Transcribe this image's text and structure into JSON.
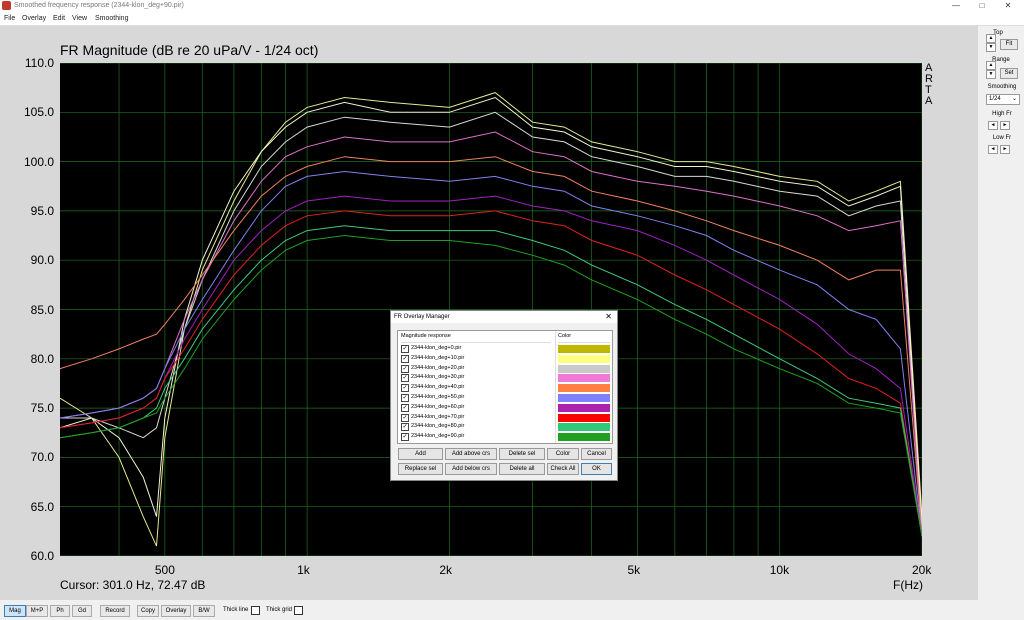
{
  "window": {
    "title": "Smoothed frequency response (2344-klon_deg+90.pir)",
    "minimize": "—",
    "maximize": "□",
    "close": "✕"
  },
  "menu": [
    "File",
    "Overlay",
    "Edit",
    "View",
    "Smoothing"
  ],
  "plot": {
    "title": "FR Magnitude (dB re 20 uPa/V - 1/24 oct)",
    "cursor_readout": "Cursor: 301.0 Hz, 72.47 dB",
    "x_unit_label": "F(Hz)",
    "brand": [
      "A",
      "R",
      "T",
      "A"
    ]
  },
  "chart_data": {
    "type": "line",
    "x_scale": "log",
    "xlim": [
      300,
      20000
    ],
    "ylim": [
      60,
      110
    ],
    "yticks": [
      "110.0",
      "105.0",
      "100.0",
      "95.0",
      "90.0",
      "85.0",
      "80.0",
      "75.0",
      "70.0",
      "65.0",
      "60.0"
    ],
    "xticks": [
      {
        "value": 500,
        "label": "500"
      },
      {
        "value": 1000,
        "label": "1k"
      },
      {
        "value": 2000,
        "label": "2k"
      },
      {
        "value": 5000,
        "label": "5k"
      },
      {
        "value": 10000,
        "label": "10k"
      },
      {
        "value": 20000,
        "label": "20k"
      }
    ],
    "grid": true,
    "x": [
      300,
      350,
      400,
      450,
      480,
      500,
      550,
      600,
      700,
      800,
      900,
      1000,
      1200,
      1500,
      2000,
      2500,
      3000,
      3500,
      4000,
      5000,
      6000,
      7000,
      8000,
      10000,
      12000,
      14000,
      16000,
      18000,
      20000
    ],
    "series": [
      {
        "name": "2344-klon_deg+0.pir",
        "color": "#e8e890",
        "values": [
          76,
          74,
          70,
          64,
          61,
          72,
          83,
          89,
          96,
          101,
          104,
          105.5,
          106.5,
          106,
          105.5,
          107,
          104,
          103.5,
          102,
          101,
          100,
          100,
          99.5,
          98.5,
          98,
          96,
          97,
          98,
          64
        ]
      },
      {
        "name": "2344-klon_deg+10.pir",
        "color": "#f4f4d0",
        "values": [
          73,
          74,
          72,
          68,
          64,
          74,
          84,
          90,
          97,
          101,
          103.5,
          105,
          106,
          105,
          105,
          106.5,
          103.5,
          103,
          101.5,
          100.5,
          99.5,
          99.5,
          99,
          98,
          97.5,
          95.5,
          96.5,
          97.5,
          63
        ]
      },
      {
        "name": "2344-klon_deg+20.pir",
        "color": "#d8d8d8",
        "values": [
          74,
          74,
          73,
          72,
          73,
          76,
          83,
          88,
          95,
          99.5,
          102,
          103.5,
          104.5,
          104,
          103.5,
          105,
          102.5,
          102,
          100.5,
          99.5,
          98.5,
          98.5,
          98,
          97,
          96.5,
          94.5,
          95.5,
          96,
          62
        ]
      },
      {
        "name": "2344-klon_deg+30.pir",
        "color": "#e070c8",
        "values": [
          74,
          74.5,
          75,
          76,
          77,
          79,
          84,
          88,
          94,
          98,
          100.5,
          101.5,
          102.5,
          102,
          102,
          103,
          101,
          100.5,
          99,
          98,
          97.5,
          97,
          96.5,
          95.5,
          94.5,
          93,
          93.5,
          94,
          62
        ]
      },
      {
        "name": "2344-klon_deg+40.pir",
        "color": "#f08060",
        "values": [
          79,
          80,
          81,
          82,
          82.5,
          83.5,
          86,
          88.5,
          93,
          96.5,
          98.5,
          99.5,
          100.5,
          100,
          100,
          100.5,
          99,
          98.5,
          97,
          96,
          95,
          94,
          93,
          91.5,
          90,
          88,
          89,
          89,
          62
        ]
      },
      {
        "name": "2344-klon_deg+50.pir",
        "color": "#8080f0",
        "values": [
          74,
          74.5,
          75,
          76,
          77,
          79,
          83,
          86,
          91,
          95,
          97.5,
          98.5,
          99,
          98.5,
          98,
          98.5,
          97.5,
          97,
          95.5,
          94.5,
          93.5,
          92.5,
          91,
          89,
          87.5,
          85,
          84,
          81,
          62
        ]
      },
      {
        "name": "2344-klon_deg+60.pir",
        "color": "#a020c0",
        "values": [
          73,
          73.5,
          74,
          75,
          76,
          78,
          82,
          85,
          90,
          93,
          95,
          96,
          96.5,
          96,
          96,
          96.5,
          95.5,
          95,
          94,
          93,
          91.5,
          90,
          88.5,
          86,
          83.5,
          80.5,
          79,
          77,
          62
        ]
      },
      {
        "name": "2344-klon_deg+70.pir",
        "color": "#e02020",
        "values": [
          73,
          73.5,
          74,
          75,
          76,
          78,
          81,
          84,
          88.5,
          91.5,
          93.5,
          94.5,
          95,
          94.5,
          94.5,
          95,
          94,
          93.5,
          92,
          90.5,
          88.5,
          87,
          85.5,
          83,
          80.5,
          78,
          77,
          75.5,
          62
        ]
      },
      {
        "name": "2344-klon_deg+80.pir",
        "color": "#40c880",
        "values": [
          72,
          72.5,
          73,
          74,
          75,
          77,
          80,
          83,
          87,
          90,
          92,
          93,
          93.5,
          93,
          93,
          93,
          92,
          91,
          89.5,
          87.5,
          85.5,
          84,
          82.5,
          80,
          78,
          76,
          75.5,
          75,
          62
        ]
      },
      {
        "name": "2344-klon_deg+90.pir",
        "color": "#20a020",
        "values": [
          72,
          72.5,
          73,
          74,
          74.5,
          76,
          79,
          82,
          86,
          89,
          91,
          92,
          92.5,
          92,
          92,
          91.5,
          90.5,
          89.5,
          88,
          86,
          84,
          82.5,
          81,
          79,
          77.5,
          75.5,
          75,
          74.5,
          62
        ]
      }
    ]
  },
  "right_panel": {
    "top_label": "Top",
    "fit_label": "Fit",
    "range_label": "Range",
    "set_label": "Set",
    "smoothing_label": "Smoothing",
    "smoothing_value": "1/24",
    "high_fr_label": "High Fr",
    "low_fr_label": "Low Fr",
    "up": "▲",
    "down": "▼",
    "left": "◄",
    "right": "►"
  },
  "bottom_bar": {
    "buttons": [
      "Mag",
      "M+P",
      "Ph",
      "Gd",
      "Record",
      "Copy",
      "Overlay",
      "B/W"
    ],
    "thick_line": "Thick line",
    "thick_grid": "Thick grid"
  },
  "dialog": {
    "title": "FR Overlay Manager",
    "close": "✕",
    "col_name": "Magnitude response",
    "col_color": "Color",
    "check": "✓",
    "rows": [
      {
        "name": "2344-klon_deg+0.pir",
        "color": "#c0b800"
      },
      {
        "name": "2344-klon_deg+10.pir",
        "color": "#ffff80"
      },
      {
        "name": "2344-klon_deg+20.pir",
        "color": "#c8c8c8"
      },
      {
        "name": "2344-klon_deg+30.pir",
        "color": "#f07ad8"
      },
      {
        "name": "2344-klon_deg+40.pir",
        "color": "#ff8040"
      },
      {
        "name": "2344-klon_deg+50.pir",
        "color": "#8080ff"
      },
      {
        "name": "2344-klon_deg+60.pir",
        "color": "#b020b0"
      },
      {
        "name": "2344-klon_deg+70.pir",
        "color": "#ff0000"
      },
      {
        "name": "2344-klon_deg+80.pir",
        "color": "#30c878"
      },
      {
        "name": "2344-klon_deg+90.pir",
        "color": "#20a020"
      }
    ],
    "buttons_row1": [
      "Add",
      "Add above crs",
      "Delete sel",
      "Color",
      "Cancel"
    ],
    "buttons_row2": [
      "Replace sel",
      "Add below crs",
      "Delete all",
      "Check All",
      "OK"
    ]
  }
}
